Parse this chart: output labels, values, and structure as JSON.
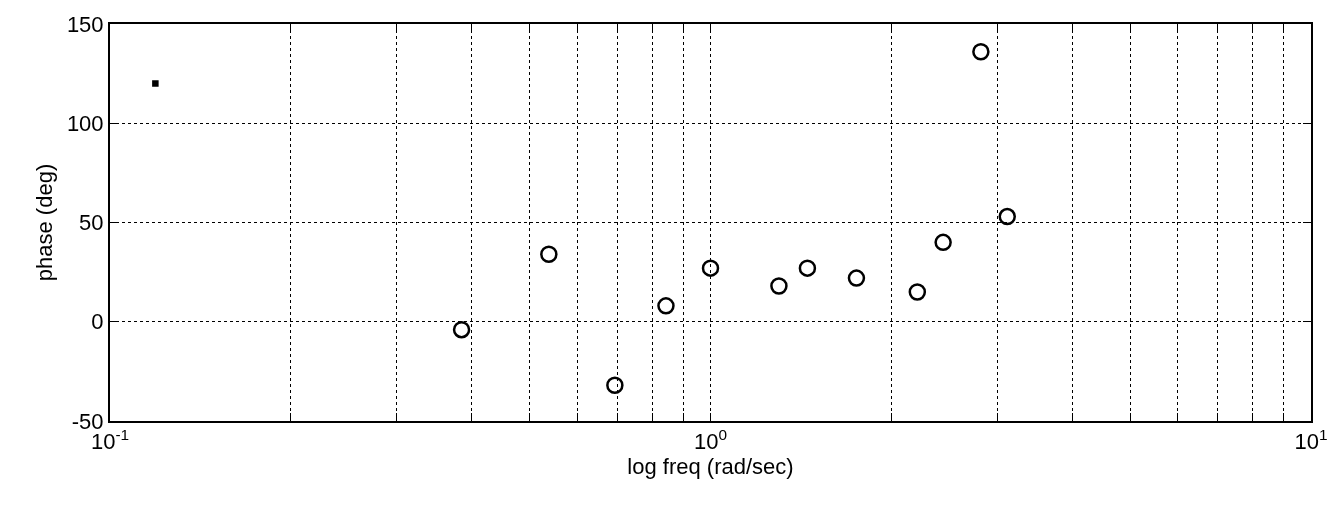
{
  "chart_data": {
    "type": "scatter",
    "xlabel": "log freq (rad/sec)",
    "ylabel": "phase (deg)",
    "log": "x",
    "grid": true,
    "xlim": [
      0.1,
      10
    ],
    "ylim": [
      -50,
      150
    ],
    "xticks": [
      {
        "value": 0.1,
        "label": "10$^{-1}$"
      },
      {
        "value": 0.2,
        "label": null
      },
      {
        "value": 0.3,
        "label": null
      },
      {
        "value": 0.4,
        "label": null
      },
      {
        "value": 0.5,
        "label": null
      },
      {
        "value": 0.6,
        "label": null
      },
      {
        "value": 0.7,
        "label": null
      },
      {
        "value": 0.8,
        "label": null
      },
      {
        "value": 0.9,
        "label": null
      },
      {
        "value": 1,
        "label": "10$^{0}$"
      },
      {
        "value": 2,
        "label": null
      },
      {
        "value": 3,
        "label": null
      },
      {
        "value": 4,
        "label": null
      },
      {
        "value": 5,
        "label": null
      },
      {
        "value": 6,
        "label": null
      },
      {
        "value": 7,
        "label": null
      },
      {
        "value": 8,
        "label": null
      },
      {
        "value": 9,
        "label": null
      },
      {
        "value": 10,
        "label": "10$^{1}$"
      }
    ],
    "yticks": [
      -50,
      0,
      50,
      100,
      150
    ],
    "series": [
      {
        "color": "#000000",
        "marker": "circle",
        "x": [
          0.385,
          0.538,
          0.693,
          0.843,
          1.0,
          1.3,
          1.45,
          1.75,
          2.21,
          2.44,
          2.82,
          3.12
        ],
        "values": [
          -4,
          34,
          -32,
          8,
          27,
          18,
          27,
          22,
          15,
          40,
          136,
          53
        ]
      },
      {
        "color": "#000000",
        "marker": "square",
        "x": [
          0.119
        ],
        "values": [
          120
        ]
      }
    ]
  }
}
